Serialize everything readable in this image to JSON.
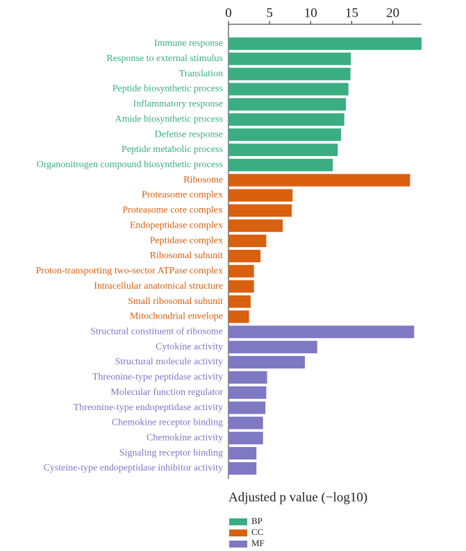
{
  "chart_data": {
    "type": "bar",
    "orientation": "horizontal",
    "xlabel": "Adjusted p value (−log10)",
    "categories": [
      "Immune response",
      "Response to external stimulus",
      "Translation",
      "Peptide biosynthetic process",
      "Inflammatory response",
      "Amide biosynthetic process",
      "Defense response",
      "Peptide metabolic process",
      "Organonitrogen compound biosynthetic process",
      "Ribosome",
      "Proteasome complex",
      "Proteasome core complex",
      "Endopeptidase complex",
      "Peptidase complex",
      "Ribosomal subunit",
      "Proton-transporting two-sector ATPase complex",
      "Intracellular anatomical structure",
      "Small ribosomal subunit",
      "Mitochondrial envelope",
      "Structural constituent of ribosome",
      "Cytokine activity",
      "Structural molecule activity",
      "Threonine-type peptidase activity",
      "Molecular function regulator",
      "Threonine-type endopeptidase activity",
      "Chemokine receptor binding",
      "Chemokine activity",
      "Signaling receptor binding",
      "Cysteine-type endopeptidase inhibitor activity"
    ],
    "series": [
      {
        "name": "BP",
        "color": "#3aae82",
        "values": [
          23.5,
          14.9,
          14.85,
          14.6,
          14.3,
          14.1,
          13.7,
          13.3,
          12.7,
          null,
          null,
          null,
          null,
          null,
          null,
          null,
          null,
          null,
          null,
          null,
          null,
          null,
          null,
          null,
          null,
          null,
          null,
          null,
          null
        ]
      },
      {
        "name": "CC",
        "color": "#d9600f",
        "values": [
          null,
          null,
          null,
          null,
          null,
          null,
          null,
          null,
          null,
          22.1,
          7.8,
          7.7,
          6.6,
          4.6,
          3.9,
          3.1,
          3.1,
          2.7,
          2.5,
          null,
          null,
          null,
          null,
          null,
          null,
          null,
          null,
          null,
          null
        ]
      },
      {
        "name": "MF",
        "color": "#7f78c3",
        "values": [
          null,
          null,
          null,
          null,
          null,
          null,
          null,
          null,
          null,
          null,
          null,
          null,
          null,
          null,
          null,
          null,
          null,
          null,
          null,
          22.6,
          10.8,
          9.3,
          4.7,
          4.6,
          4.5,
          4.2,
          4.2,
          3.4,
          3.4
        ]
      }
    ],
    "xlim": [
      0,
      23.5
    ],
    "xticks": [
      0,
      5,
      10,
      15,
      20
    ]
  }
}
